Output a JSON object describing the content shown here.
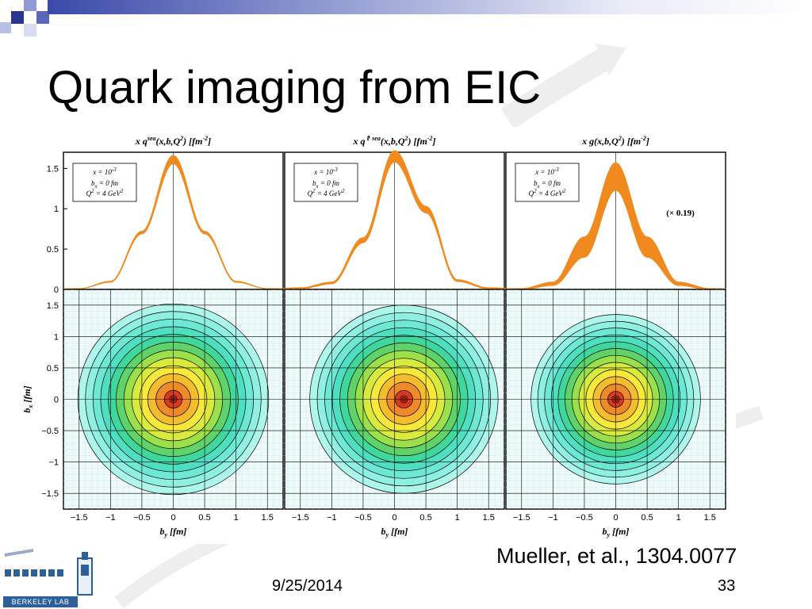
{
  "slide": {
    "title": "Quark imaging from EIC",
    "credit": "Mueller, et al., 1304.0077",
    "date": "9/25/2014",
    "page_number": "33"
  },
  "logo": {
    "text": "BERKELEY LAB"
  },
  "colors": {
    "accent_blue": "#3a4aa8",
    "curve_orange": "#f08a1e",
    "contour_outer": "#aef5ec",
    "contour_center": "#d83a1e"
  },
  "chart_data": [
    {
      "type": "line",
      "title_parts": [
        "x q",
        "sea",
        "(x,b,Q",
        "2",
        ") [fm",
        "-2",
        "]"
      ],
      "legend_lines": [
        "x = 10",
        "-3",
        "b",
        "x",
        " = 0 fm",
        "Q",
        "2",
        " = 4 GeV",
        "2"
      ],
      "x": [
        -1.5,
        -1,
        -0.5,
        0,
        0.5,
        1,
        1.5
      ],
      "y_lower": [
        0.01,
        0.09,
        0.69,
        1.56,
        0.69,
        0.09,
        0.01
      ],
      "y_upper": [
        0.01,
        0.1,
        0.72,
        1.66,
        0.72,
        0.1,
        0.01
      ],
      "ylim": [
        0,
        1.7
      ],
      "xlim": [
        -1.75,
        1.75
      ],
      "yticks": [
        "0",
        "0.5",
        "1",
        "1.5"
      ]
    },
    {
      "type": "line",
      "title_parts": [
        "x q",
        "⇑ sea",
        "(x,b,Q",
        "2",
        ") [fm",
        "-2",
        "]"
      ],
      "legend_lines": [
        "x = 10",
        "-3",
        "b",
        "x",
        " = 0 fm",
        "Q",
        "2",
        " = 4 GeV",
        "2"
      ],
      "x": [
        -1.5,
        -1,
        -0.5,
        0,
        0.5,
        1,
        1.5
      ],
      "y_lower": [
        0.01,
        0.07,
        0.58,
        1.58,
        0.95,
        0.1,
        0.01
      ],
      "y_upper": [
        0.02,
        0.09,
        0.64,
        1.72,
        1.03,
        0.12,
        0.02
      ],
      "ylim": [
        0,
        1.7
      ],
      "xlim": [
        -1.75,
        1.75
      ],
      "yticks": [
        "0",
        "0.5",
        "1",
        "1.5"
      ]
    },
    {
      "type": "line",
      "title_parts": [
        "x g",
        "",
        "(x,b,Q",
        "2",
        ") [fm",
        "-2",
        "]"
      ],
      "legend_lines": [
        "x = 10",
        "-3",
        "b",
        "x",
        " = 0 fm",
        "Q",
        "2",
        " = 4 GeV",
        "2"
      ],
      "annotation": "(× 0.19)",
      "x": [
        -1.5,
        -1,
        -0.5,
        0,
        0.5,
        1,
        1.5
      ],
      "y_lower": [
        0.0,
        0.05,
        0.4,
        1.23,
        0.4,
        0.05,
        0.0
      ],
      "y_upper": [
        0.01,
        0.09,
        0.65,
        1.57,
        0.65,
        0.09,
        0.01
      ],
      "ylim": [
        0,
        1.7
      ],
      "xlim": [
        -1.75,
        1.75
      ],
      "yticks": [
        "0",
        "0.5",
        "1",
        "1.5"
      ]
    },
    {
      "type": "heatmap",
      "center": [
        0,
        0
      ],
      "contour_levels": 12,
      "outer_radius": 1.52,
      "xlim": [
        -1.75,
        1.75
      ],
      "ylim": [
        -1.75,
        1.75
      ],
      "xticks": [
        "-1.5",
        "-1",
        "-0.5",
        "0",
        "0.5",
        "1",
        "1.5"
      ],
      "yticks": [
        "-1.5",
        "-1",
        "-0.5",
        "0",
        "0.5",
        "1",
        "1.5"
      ],
      "xlabel": "b",
      "xlabel_sub": "y",
      "xlabel_unit": " [fm]",
      "ylabel": "b",
      "ylabel_sub": "x",
      "ylabel_unit": " [fm]"
    },
    {
      "type": "heatmap",
      "center": [
        0.15,
        0
      ],
      "contour_levels": 12,
      "outer_radius": 1.5,
      "xlim": [
        -1.75,
        1.75
      ],
      "ylim": [
        -1.75,
        1.75
      ],
      "xticks": [
        "-1.5",
        "-1",
        "-0.5",
        "0",
        "0.5",
        "1",
        "1.5"
      ],
      "xlabel": "b",
      "xlabel_sub": "y",
      "xlabel_unit": " [fm]"
    },
    {
      "type": "heatmap",
      "center": [
        0,
        0
      ],
      "contour_levels": 12,
      "outer_radius": 1.35,
      "xlim": [
        -1.75,
        1.75
      ],
      "ylim": [
        -1.75,
        1.75
      ],
      "xticks": [
        "-1.5",
        "-1",
        "-0.5",
        "0",
        "0.5",
        "1",
        "1.5"
      ],
      "xlabel": "b",
      "xlabel_sub": "y",
      "xlabel_unit": " [fm]"
    }
  ]
}
